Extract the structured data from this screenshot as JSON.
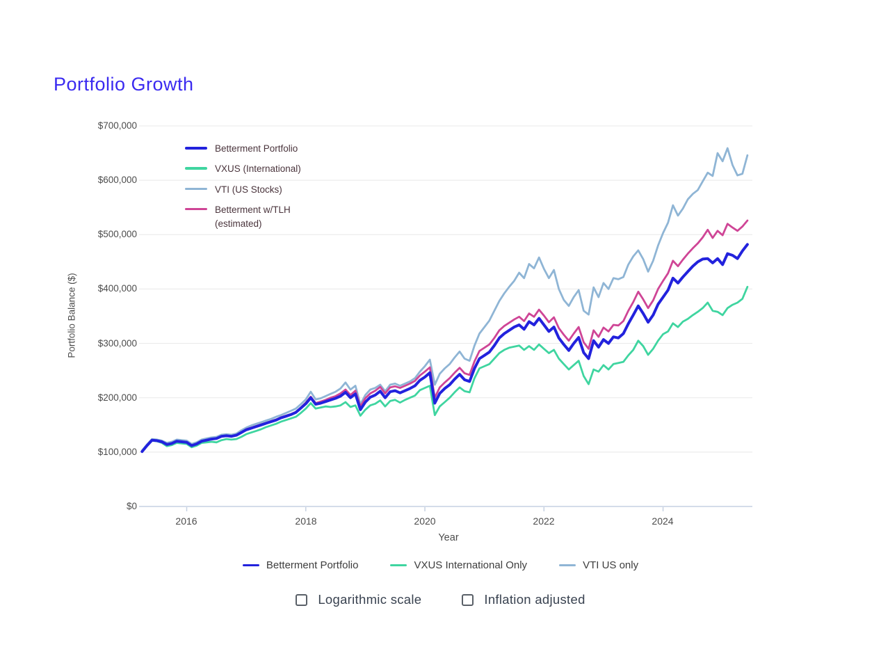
{
  "page": {
    "title": "Portfolio Growth"
  },
  "chart_data": {
    "type": "line",
    "title": "Portfolio Growth",
    "xlabel": "Year",
    "ylabel": "Portfolio Balance ($)",
    "xlim": [
      2015.2,
      2025.5
    ],
    "ylim": [
      0,
      700000
    ],
    "grid": "horizontal",
    "legend_position": "inside-top-left",
    "x_ticks": [
      2016,
      2018,
      2020,
      2022,
      2024
    ],
    "x_tick_labels": [
      "2016",
      "2018",
      "2020",
      "2022",
      "2024"
    ],
    "y_ticks": [
      0,
      100000,
      200000,
      300000,
      400000,
      500000,
      600000,
      700000
    ],
    "y_tick_labels": [
      "$0",
      "$100,000",
      "$200,000",
      "$300,000",
      "$400,000",
      "$500,000",
      "$600,000",
      "$700,000"
    ],
    "unit": "values_thousands are USD x 1000, monthly points",
    "series": [
      {
        "id": "vti",
        "name": "VTI (US Stocks)",
        "color": "#8fb5d5",
        "stroke_width": 2.8,
        "x_start": 2015.25,
        "x_step": 0.0833333,
        "values_thousands": [
          103,
          114,
          124,
          123,
          121,
          117,
          119,
          123,
          122,
          121,
          115,
          118,
          123,
          125,
          127,
          128,
          132,
          133,
          132,
          134,
          140,
          145,
          149,
          152,
          155,
          158,
          161,
          165,
          168,
          172,
          176,
          180,
          188,
          197,
          211,
          197,
          199,
          203,
          207,
          211,
          217,
          228,
          215,
          222,
          188,
          205,
          215,
          218,
          224,
          212,
          224,
          226,
          222,
          226,
          230,
          236,
          248,
          258,
          270,
          224,
          244,
          254,
          262,
          274,
          285,
          272,
          268,
          296,
          318,
          330,
          342,
          360,
          378,
          392,
          404,
          415,
          430,
          420,
          446,
          438,
          458,
          437,
          420,
          435,
          400,
          380,
          369,
          385,
          398,
          360,
          353,
          403,
          385,
          411,
          400,
          420,
          418,
          422,
          445,
          460,
          471,
          455,
          432,
          452,
          480,
          503,
          522,
          554,
          535,
          548,
          565,
          575,
          582,
          598,
          614,
          608,
          650,
          635,
          659,
          628,
          609,
          612,
          646
        ]
      },
      {
        "id": "betterment-tlh",
        "name": "Betterment w/TLH (estimated)",
        "color": "#cf4596",
        "stroke_width": 2.8,
        "x_start": 2015.25,
        "x_step": 0.0833333,
        "values_thousands": [
          101,
          112,
          122,
          121,
          119,
          114,
          116,
          120,
          119,
          118,
          112,
          115,
          120,
          122,
          124,
          125,
          129,
          130,
          129,
          131,
          136,
          142,
          145,
          148,
          151,
          154,
          157,
          160,
          164,
          167,
          170,
          174,
          182,
          191,
          202,
          190,
          193,
          196,
          200,
          203,
          208,
          215,
          205,
          213,
          184,
          199,
          208,
          213,
          220,
          208,
          219,
          221,
          218,
          222,
          226,
          231,
          241,
          248,
          256,
          200,
          219,
          228,
          236,
          246,
          255,
          245,
          242,
          267,
          286,
          292,
          298,
          310,
          324,
          332,
          338,
          344,
          349,
          341,
          355,
          349,
          362,
          351,
          339,
          348,
          328,
          316,
          305,
          318,
          330,
          302,
          290,
          324,
          312,
          329,
          322,
          334,
          333,
          341,
          360,
          376,
          395,
          381,
          365,
          379,
          400,
          415,
          429,
          452,
          442,
          454,
          465,
          475,
          484,
          495,
          509,
          494,
          507,
          499,
          520,
          513,
          507,
          515,
          526
        ]
      },
      {
        "id": "vxus",
        "name": "VXUS (International)",
        "color": "#3fd5a0",
        "stroke_width": 2.8,
        "x_start": 2015.25,
        "x_step": 0.0833333,
        "values_thousands": [
          102,
          112,
          121,
          120,
          117,
          111,
          113,
          117,
          116,
          115,
          109,
          112,
          117,
          118,
          119,
          118,
          122,
          124,
          123,
          124,
          128,
          133,
          136,
          139,
          142,
          146,
          149,
          152,
          156,
          159,
          162,
          165,
          172,
          180,
          190,
          180,
          182,
          184,
          183,
          184,
          186,
          192,
          183,
          186,
          167,
          178,
          186,
          189,
          195,
          184,
          194,
          196,
          191,
          196,
          200,
          204,
          214,
          218,
          222,
          168,
          184,
          192,
          200,
          210,
          219,
          212,
          210,
          236,
          254,
          258,
          262,
          272,
          282,
          288,
          292,
          294,
          296,
          288,
          295,
          288,
          298,
          290,
          282,
          288,
          272,
          262,
          252,
          260,
          268,
          240,
          225,
          252,
          248,
          260,
          252,
          262,
          264,
          266,
          278,
          288,
          305,
          295,
          279,
          290,
          305,
          317,
          322,
          337,
          330,
          340,
          345,
          352,
          358,
          365,
          375,
          360,
          358,
          352,
          365,
          371,
          375,
          382,
          404
        ]
      },
      {
        "id": "betterment",
        "name": "Betterment Portfolio",
        "color": "#2222dd",
        "stroke_width": 4,
        "x_start": 2015.25,
        "x_step": 0.0833333,
        "values_thousands": [
          101,
          112,
          122,
          121,
          119,
          114,
          116,
          120,
          119,
          118,
          112,
          115,
          120,
          122,
          124,
          125,
          129,
          130,
          129,
          131,
          136,
          141,
          144,
          147,
          150,
          153,
          156,
          159,
          163,
          166,
          169,
          173,
          181,
          189,
          200,
          188,
          190,
          193,
          196,
          199,
          203,
          210,
          200,
          207,
          178,
          192,
          201,
          205,
          212,
          200,
          211,
          213,
          209,
          213,
          217,
          222,
          232,
          238,
          246,
          190,
          208,
          217,
          224,
          234,
          243,
          233,
          230,
          254,
          272,
          278,
          284,
          296,
          310,
          318,
          324,
          330,
          334,
          326,
          340,
          334,
          346,
          334,
          322,
          330,
          310,
          298,
          287,
          300,
          311,
          283,
          272,
          305,
          293,
          307,
          300,
          312,
          310,
          318,
          336,
          352,
          369,
          355,
          339,
          352,
          372,
          385,
          398,
          420,
          411,
          422,
          432,
          442,
          450,
          455,
          456,
          448,
          456,
          445,
          465,
          462,
          456,
          470,
          482
        ]
      }
    ],
    "legend": [
      {
        "label": "Betterment Portfolio",
        "color": "#2222dd"
      },
      {
        "label": "VXUS (International)",
        "color": "#3fd5a0"
      },
      {
        "label": "VTI (US Stocks)",
        "color": "#8fb5d5"
      },
      {
        "label": "Betterment w/TLH",
        "label2": "(estimated)",
        "color": "#cf4596"
      }
    ]
  },
  "bottom_legend": [
    {
      "label": "Betterment Portfolio",
      "color": "#2222dd"
    },
    {
      "label": "VXUS International Only",
      "color": "#3fd5a0"
    },
    {
      "label": "VTI US only",
      "color": "#8fb5d5"
    }
  ],
  "controls": {
    "logarithmic_label": "Logarithmic scale",
    "inflation_label": "Inflation adjusted",
    "logarithmic_checked": false,
    "inflation_checked": false
  }
}
